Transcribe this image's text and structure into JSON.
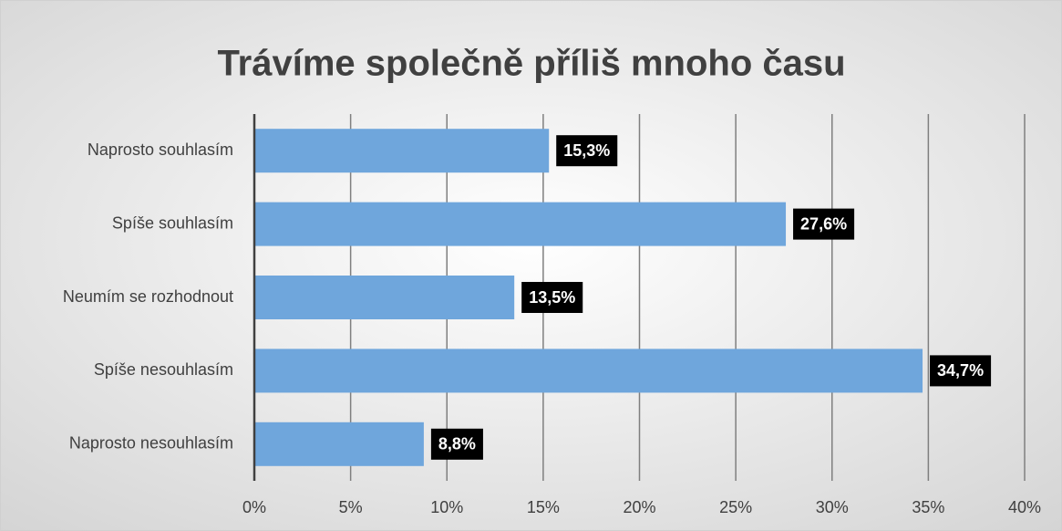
{
  "chart_data": {
    "type": "bar",
    "orientation": "horizontal",
    "title": "Trávíme společně příliš mnoho času",
    "categories": [
      "Naprosto souhlasím",
      "Spíše souhlasím",
      "Neumím se rozhodnout",
      "Spíše nesouhlasím",
      "Naprosto nesouhlasím"
    ],
    "values": [
      15.3,
      27.6,
      13.5,
      34.7,
      8.8
    ],
    "value_labels": [
      "15,3%",
      "27,6%",
      "13,5%",
      "34,7%",
      "8,8%"
    ],
    "color": "#6fa6dc",
    "xlim": [
      0,
      40
    ],
    "xticks": [
      {
        "value": 0,
        "label": "0%"
      },
      {
        "value": 5,
        "label": "5%"
      },
      {
        "value": 10,
        "label": "10%"
      },
      {
        "value": 15,
        "label": "15%"
      },
      {
        "value": 20,
        "label": "20%"
      },
      {
        "value": 25,
        "label": "25%"
      },
      {
        "value": 30,
        "label": "30%"
      },
      {
        "value": 35,
        "label": "35%"
      },
      {
        "value": 40,
        "label": "40%"
      }
    ],
    "grid": true
  }
}
